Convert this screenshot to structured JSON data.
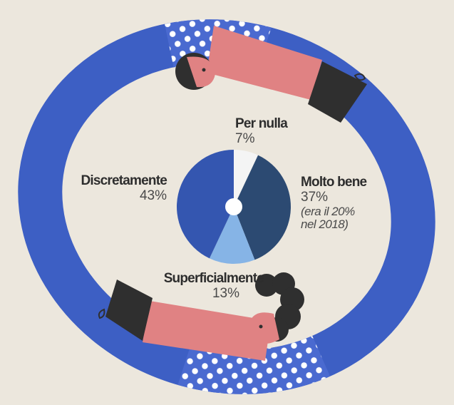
{
  "colors": {
    "background": "#ece7dd",
    "ring_blue": "#3d5fc4",
    "dot_blue": "#4a6ad0",
    "skin_pink": "#e08283",
    "hair_dark": "#2f2f2f",
    "slice_discretamente": "#3456b0",
    "slice_molto_bene": "#2c4a72",
    "slice_superficialmente": "#86b4e6",
    "slice_per_nulla": "#f4f4f4"
  },
  "icons": [
    "person-top-illustration",
    "person-bottom-illustration",
    "ring-illustration"
  ],
  "chart_data": {
    "type": "pie",
    "donut": true,
    "start": "top",
    "direction": "clockwise",
    "slices": [
      {
        "key": "per_nulla",
        "label": "Per nulla",
        "value": 7,
        "value_label": "7%"
      },
      {
        "key": "molto_bene",
        "label": "Molto bene",
        "value": 37,
        "value_label": "37%",
        "note_lines": [
          "(era il 20%",
          "nel 2018)"
        ]
      },
      {
        "key": "superficialmente",
        "label": "Superficialmente",
        "value": 13,
        "value_label": "13%"
      },
      {
        "key": "discretamente",
        "label": "Discretamente",
        "value": 43,
        "value_label": "43%"
      }
    ]
  }
}
